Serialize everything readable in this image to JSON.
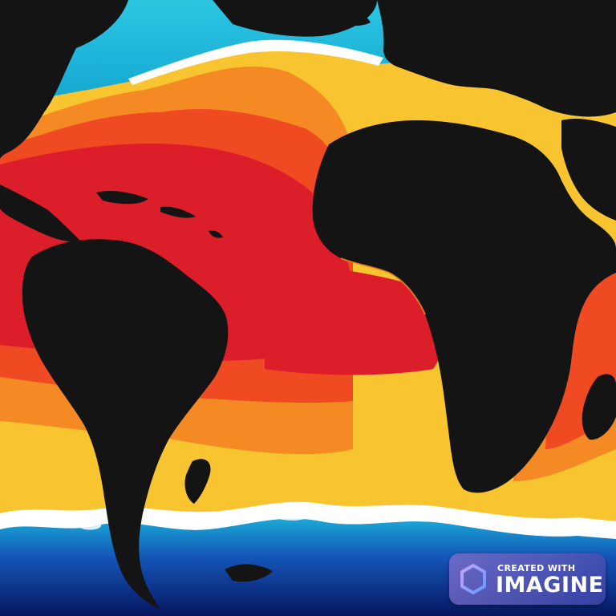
{
  "scene": {
    "description_icon": "world-ocean-temperature-map",
    "colors": {
      "land": "#141414",
      "hot": "#dc1e2a",
      "warm": "#ef4a22",
      "mild": "#f58a24",
      "cool": "#f8c530",
      "foam": "#ffffff",
      "cyan": "#19b9d9",
      "deep": "#0d2a8a",
      "abyss": "#071660"
    }
  },
  "watermark": {
    "line1": "CREATED WITH",
    "line2": "IMAGINE",
    "icon": "imagine-logo-icon",
    "bg_start": "#7a6ec8",
    "bg_end": "#3c46aa"
  }
}
